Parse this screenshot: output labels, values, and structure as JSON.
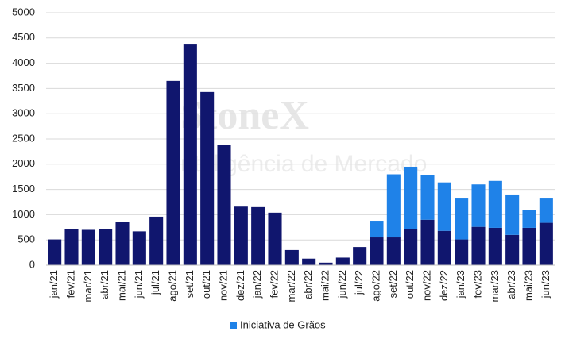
{
  "chart_data": {
    "type": "bar",
    "stacked": true,
    "watermark": [
      "StoneX",
      "Inteligência de Mercado"
    ],
    "categories": [
      "jan/21",
      "fev/21",
      "mar/21",
      "abr/21",
      "mai/21",
      "jun/21",
      "jul/21",
      "ago/21",
      "set/21",
      "out/21",
      "nov/21",
      "dez/21",
      "jan/22",
      "fev/22",
      "mar/22",
      "abr/22",
      "mai/22",
      "jun/22",
      "jul/22",
      "ago/22",
      "set/22",
      "out/22",
      "nov/22",
      "dez/22",
      "jan/23",
      "fev/23",
      "mar/23",
      "abr/23",
      "mai/23",
      "jun/23"
    ],
    "series": [
      {
        "color": "#10166e",
        "values": [
          510,
          710,
          700,
          710,
          850,
          670,
          960,
          3650,
          4370,
          3430,
          2380,
          1160,
          1150,
          1040,
          300,
          130,
          50,
          150,
          360,
          550,
          550,
          710,
          900,
          680,
          510,
          760,
          740,
          600,
          740,
          840
        ]
      },
      {
        "name": "Iniciativa de Grãos",
        "color": "#1f82e8",
        "values": [
          null,
          null,
          null,
          null,
          null,
          null,
          null,
          null,
          null,
          null,
          null,
          null,
          null,
          null,
          null,
          null,
          null,
          null,
          null,
          330,
          1250,
          1240,
          880,
          960,
          810,
          840,
          930,
          800,
          360,
          480
        ]
      }
    ],
    "ylim": [
      0,
      5000
    ],
    "yticks": [
      0,
      500,
      1000,
      1500,
      2000,
      2500,
      3000,
      3500,
      4000,
      4500,
      5000
    ],
    "grid": true,
    "legend": "bottom"
  }
}
